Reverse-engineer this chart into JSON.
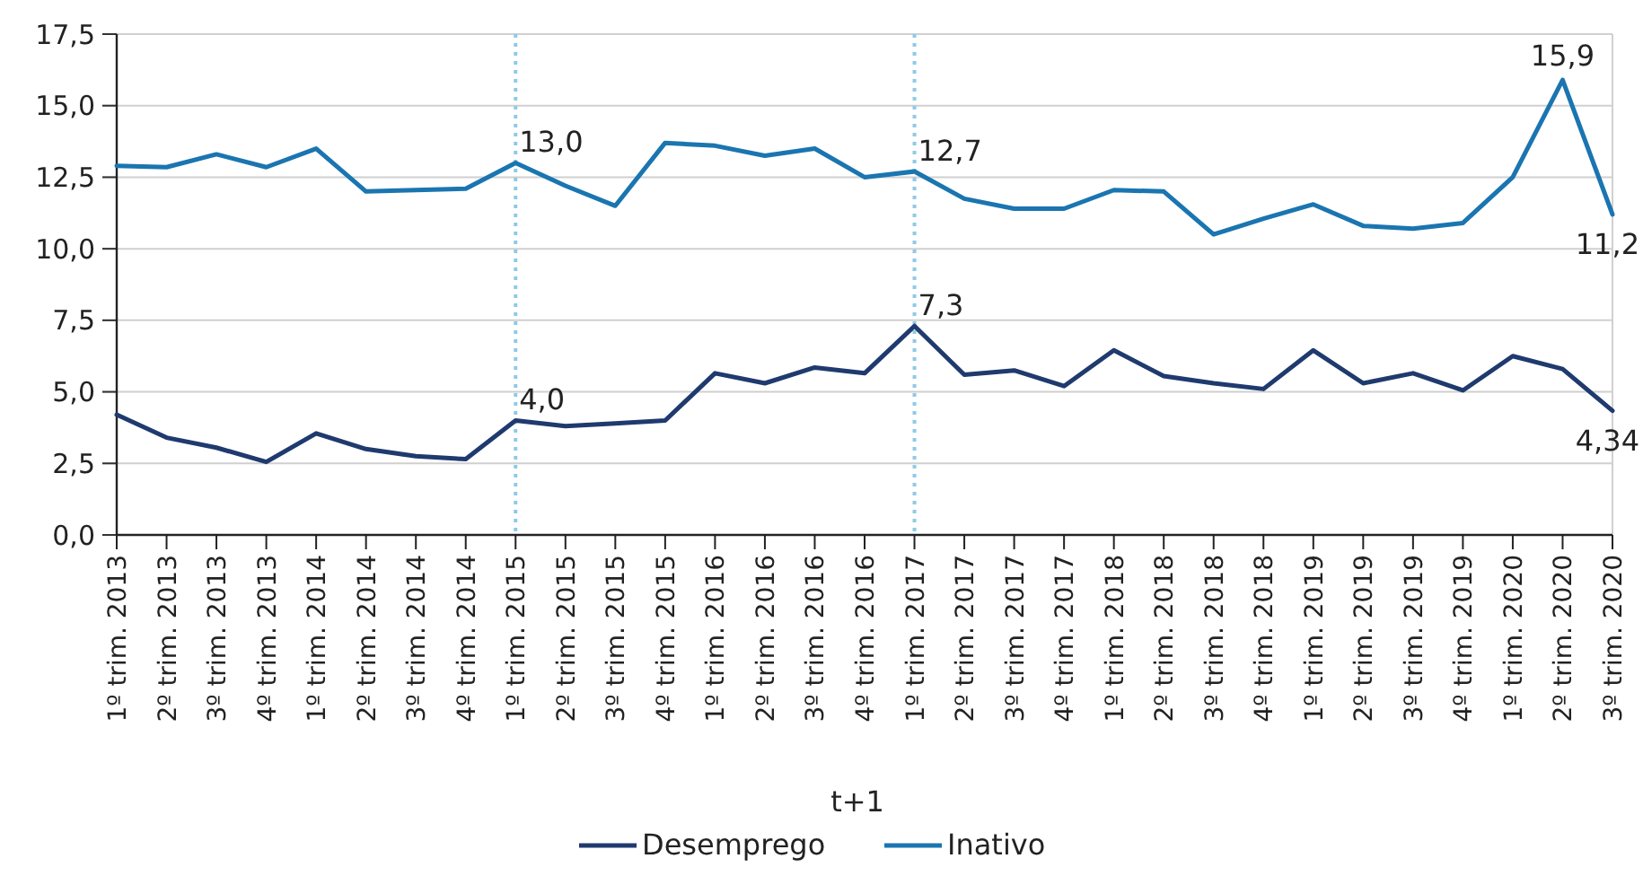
{
  "chart_data": {
    "type": "line",
    "xlabel": "t+1",
    "categories": [
      "1º trim. 2013",
      "2º trim. 2013",
      "3º trim. 2013",
      "4º trim. 2013",
      "1º trim. 2014",
      "2º trim. 2014",
      "3º trim. 2014",
      "4º trim. 2014",
      "1º trim. 2015",
      "2º trim. 2015",
      "3º trim. 2015",
      "4º trim. 2015",
      "1º trim. 2016",
      "2º trim. 2016",
      "3º trim. 2016",
      "4º trim. 2016",
      "1º trim. 2017",
      "2º trim. 2017",
      "3º trim. 2017",
      "4º trim. 2017",
      "1º trim. 2018",
      "2º trim. 2018",
      "3º trim. 2018",
      "4º trim. 2018",
      "1º trim. 2019",
      "2º trim. 2019",
      "3º trim. 2019",
      "4º trim. 2019",
      "1º trim. 2020",
      "2º trim. 2020",
      "3º trim. 2020"
    ],
    "series": [
      {
        "name": "Desemprego",
        "color": "#1f3a6e",
        "values": [
          4.2,
          3.4,
          3.05,
          2.55,
          3.55,
          3.0,
          2.75,
          2.65,
          4.0,
          3.8,
          3.9,
          4.0,
          5.65,
          5.3,
          5.85,
          5.65,
          7.3,
          5.6,
          5.75,
          5.2,
          6.45,
          5.55,
          5.3,
          5.1,
          6.45,
          5.3,
          5.65,
          5.05,
          6.25,
          5.8,
          4.34
        ]
      },
      {
        "name": "Inativo",
        "color": "#1a75b0",
        "values": [
          12.9,
          12.85,
          13.3,
          12.85,
          13.5,
          12.0,
          12.05,
          12.1,
          13.0,
          12.2,
          11.5,
          13.7,
          13.6,
          13.25,
          13.5,
          12.5,
          12.7,
          11.75,
          11.4,
          11.4,
          12.05,
          12.0,
          10.5,
          11.05,
          11.55,
          10.8,
          10.7,
          10.9,
          12.5,
          15.9,
          11.2
        ]
      }
    ],
    "ylim": [
      0,
      17.5
    ],
    "yticks": [
      {
        "value": 0,
        "label": "0,0"
      },
      {
        "value": 2.5,
        "label": "2,5"
      },
      {
        "value": 5,
        "label": "5,0"
      },
      {
        "value": 7.5,
        "label": "7,5"
      },
      {
        "value": 10,
        "label": "10,0"
      },
      {
        "value": 12.5,
        "label": "12,5"
      },
      {
        "value": 15,
        "label": "15,0"
      },
      {
        "value": 17.5,
        "label": "17,5"
      }
    ],
    "grid": "y",
    "legend": "bottom",
    "marker": "none",
    "line_style": "solid",
    "ref_lines": [
      {
        "axis": "x",
        "value": "1º trim. 2015",
        "color": "#8ecae6",
        "line_style": "dotted"
      },
      {
        "axis": "x",
        "value": "1º trim. 2017",
        "color": "#8ecae6",
        "line_style": "dotted"
      }
    ],
    "annotations": [
      {
        "text": "4,0",
        "x": "1º trim. 2015",
        "y": 4.0
      },
      {
        "text": "13,0",
        "x": "1º trim. 2015",
        "y": 13.0
      },
      {
        "text": "7,3",
        "x": "1º trim. 2017",
        "y": 7.3
      },
      {
        "text": "12,7",
        "x": "1º trim. 2017",
        "y": 12.7
      },
      {
        "text": "15,9",
        "x": "2º trim. 2020",
        "y": 15.9
      },
      {
        "text": "11,2",
        "x": "3º trim. 2020",
        "y": 11.2
      },
      {
        "text": "4,34",
        "x": "3º trim. 2020",
        "y": 4.34
      }
    ]
  }
}
